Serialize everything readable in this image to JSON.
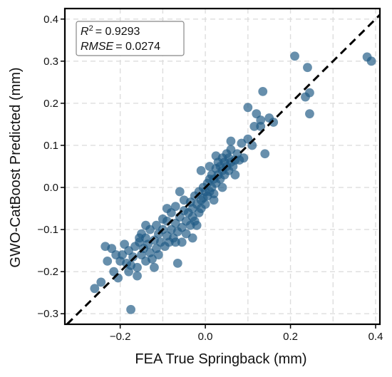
{
  "chart_data": {
    "type": "scatter",
    "xlabel": "FEA True Springback (mm)",
    "ylabel": "GWO-CatBoost Predicted (mm)",
    "xlim": [
      -0.33,
      0.41
    ],
    "ylim": [
      -0.325,
      0.425
    ],
    "xticks": [
      -0.2,
      0.0,
      0.2,
      0.4
    ],
    "xtick_labels": [
      "−0.2",
      "0.0",
      "0.2",
      "0.4"
    ],
    "yticks": [
      -0.3,
      -0.2,
      -0.1,
      0.0,
      0.1,
      0.2,
      0.3,
      0.4
    ],
    "ytick_labels": [
      "−0.3",
      "−0.2",
      "−0.1",
      "0.0",
      "0.1",
      "0.2",
      "0.3",
      "0.4"
    ],
    "grid": true,
    "reference_line": "y = x",
    "stats": {
      "r2_symbol": "R",
      "r2_superscript": "2",
      "r2_value": "= 0.9293",
      "rmse_symbol": "RMSE",
      "rmse_value": "= 0.0274"
    },
    "colors": {
      "points": "#1f5a84",
      "reference_line": "#000000",
      "grid": "#dddddd"
    },
    "points": [
      [
        -0.26,
        -0.24
      ],
      [
        -0.245,
        -0.225
      ],
      [
        -0.23,
        -0.175
      ],
      [
        -0.235,
        -0.14
      ],
      [
        -0.22,
        -0.145
      ],
      [
        -0.215,
        -0.2
      ],
      [
        -0.205,
        -0.215
      ],
      [
        -0.2,
        -0.175
      ],
      [
        -0.195,
        -0.16
      ],
      [
        -0.19,
        -0.135
      ],
      [
        -0.185,
        -0.18
      ],
      [
        -0.18,
        -0.2
      ],
      [
        -0.175,
        -0.185
      ],
      [
        -0.175,
        -0.29
      ],
      [
        -0.17,
        -0.165
      ],
      [
        -0.165,
        -0.14
      ],
      [
        -0.16,
        -0.19
      ],
      [
        -0.155,
        -0.13
      ],
      [
        -0.15,
        -0.16
      ],
      [
        -0.15,
        -0.11
      ],
      [
        -0.145,
        -0.145
      ],
      [
        -0.14,
        -0.175
      ],
      [
        -0.14,
        -0.12
      ],
      [
        -0.135,
        -0.135
      ],
      [
        -0.13,
        -0.155
      ],
      [
        -0.13,
        -0.1
      ],
      [
        -0.125,
        -0.17
      ],
      [
        -0.12,
        -0.125
      ],
      [
        -0.115,
        -0.145
      ],
      [
        -0.115,
        -0.09
      ],
      [
        -0.11,
        -0.11
      ],
      [
        -0.11,
        -0.16
      ],
      [
        -0.105,
        -0.13
      ],
      [
        -0.1,
        -0.1
      ],
      [
        -0.1,
        -0.075
      ],
      [
        -0.095,
        -0.14
      ],
      [
        -0.09,
        -0.115
      ],
      [
        -0.09,
        -0.08
      ],
      [
        -0.085,
        -0.13
      ],
      [
        -0.08,
        -0.06
      ],
      [
        -0.08,
        -0.1
      ],
      [
        -0.075,
        -0.12
      ],
      [
        -0.07,
        -0.085
      ],
      [
        -0.07,
        -0.045
      ],
      [
        -0.065,
        -0.105
      ],
      [
        -0.065,
        -0.18
      ],
      [
        -0.06,
        -0.07
      ],
      [
        -0.055,
        -0.095
      ],
      [
        -0.055,
        -0.13
      ],
      [
        -0.05,
        -0.055
      ],
      [
        -0.05,
        -0.03
      ],
      [
        -0.045,
        -0.08
      ],
      [
        -0.045,
        -0.11
      ],
      [
        -0.04,
        -0.06
      ],
      [
        -0.035,
        -0.035
      ],
      [
        -0.035,
        -0.09
      ],
      [
        -0.03,
        -0.05
      ],
      [
        -0.03,
        -0.07
      ],
      [
        -0.025,
        -0.02
      ],
      [
        -0.025,
        -0.08
      ],
      [
        -0.02,
        -0.04
      ],
      [
        -0.015,
        -0.06
      ],
      [
        -0.015,
        -0.01
      ],
      [
        -0.01,
        -0.03
      ],
      [
        -0.01,
        -0.05
      ],
      [
        -0.005,
        0.0
      ],
      [
        -0.005,
        -0.025
      ],
      [
        0.0,
        -0.01
      ],
      [
        0.0,
        -0.04
      ],
      [
        0.005,
        0.01
      ],
      [
        0.005,
        -0.02
      ],
      [
        0.01,
        0.02
      ],
      [
        0.01,
        -0.01
      ],
      [
        0.015,
        0.0
      ],
      [
        0.015,
        0.03
      ],
      [
        0.02,
        0.02
      ],
      [
        0.02,
        -0.03
      ],
      [
        0.025,
        0.045
      ],
      [
        0.025,
        0.01
      ],
      [
        0.03,
        0.03
      ],
      [
        0.03,
        0.06
      ],
      [
        0.035,
        0.02
      ],
      [
        0.035,
        0.05
      ],
      [
        0.04,
        0.04
      ],
      [
        0.04,
        0.07
      ],
      [
        0.045,
        0.03
      ],
      [
        0.045,
        0.06
      ],
      [
        0.05,
        0.08
      ],
      [
        0.05,
        0.05
      ],
      [
        0.055,
        0.04
      ],
      [
        0.055,
        0.07
      ],
      [
        0.06,
        0.06
      ],
      [
        0.06,
        0.09
      ],
      [
        0.065,
        0.05
      ],
      [
        0.07,
        0.065
      ],
      [
        0.075,
        0.08
      ],
      [
        0.08,
        0.065
      ],
      [
        0.09,
        0.07
      ],
      [
        0.1,
        0.115
      ],
      [
        0.11,
        0.1
      ],
      [
        -0.03,
        -0.12
      ],
      [
        0.04,
        0.0
      ],
      [
        0.07,
        0.03
      ],
      [
        -0.12,
        -0.19
      ],
      [
        -0.155,
        -0.12
      ],
      [
        -0.06,
        -0.01
      ],
      [
        0.025,
        0.075
      ],
      [
        0.12,
        0.175
      ],
      [
        0.115,
        0.145
      ],
      [
        0.1,
        0.19
      ],
      [
        0.13,
        0.16
      ],
      [
        0.135,
        0.228
      ],
      [
        0.15,
        0.165
      ],
      [
        0.16,
        0.155
      ],
      [
        0.14,
        0.08
      ],
      [
        0.13,
        0.145
      ],
      [
        0.21,
        0.312
      ],
      [
        0.24,
        0.285
      ],
      [
        0.235,
        0.215
      ],
      [
        0.245,
        0.225
      ],
      [
        0.245,
        0.175
      ],
      [
        0.38,
        0.31
      ],
      [
        0.39,
        0.3
      ],
      [
        -0.18,
        -0.15
      ],
      [
        -0.09,
        -0.05
      ],
      [
        0.01,
        0.05
      ],
      [
        0.085,
        0.105
      ],
      [
        -0.21,
        -0.16
      ],
      [
        -0.14,
        -0.09
      ],
      [
        -0.02,
        -0.09
      ],
      [
        0.06,
        0.11
      ],
      [
        -0.01,
        0.04
      ],
      [
        -0.07,
        -0.13
      ],
      [
        0.02,
        -0.015
      ],
      [
        -0.16,
        -0.21
      ]
    ]
  }
}
